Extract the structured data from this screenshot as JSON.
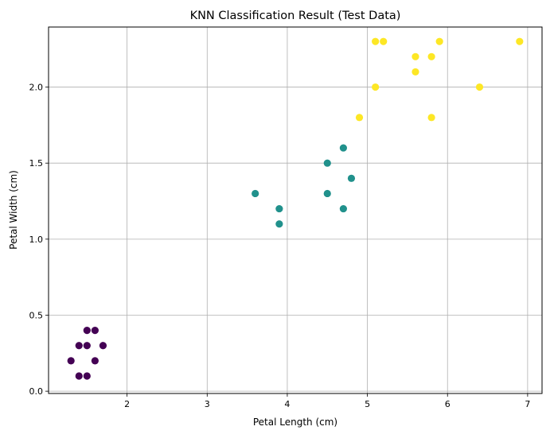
{
  "chart_data": {
    "type": "scatter",
    "title": "KNN Classification Result (Test Data)",
    "xlabel": "Petal Length (cm)",
    "ylabel": "Petal Width (cm)",
    "xlim": [
      1.02,
      7.18
    ],
    "ylim": [
      -0.015,
      2.395
    ],
    "x_ticks": [
      2,
      3,
      4,
      5,
      6,
      7
    ],
    "x_tick_labels": [
      "2",
      "3",
      "4",
      "5",
      "6",
      "7"
    ],
    "y_ticks": [
      0.0,
      0.5,
      1.0,
      1.5,
      2.0
    ],
    "y_tick_labels": [
      "0.0",
      "0.5",
      "1.0",
      "1.5",
      "2.0"
    ],
    "grid": true,
    "class_colors": {
      "0": "#440154",
      "1": "#21918c",
      "2": "#fde725"
    },
    "points": [
      {
        "x": 1.5,
        "y": 0.4,
        "class": 0
      },
      {
        "x": 1.6,
        "y": 0.4,
        "class": 0
      },
      {
        "x": 1.4,
        "y": 0.3,
        "class": 0
      },
      {
        "x": 1.5,
        "y": 0.3,
        "class": 0
      },
      {
        "x": 1.7,
        "y": 0.3,
        "class": 0
      },
      {
        "x": 1.3,
        "y": 0.2,
        "class": 0
      },
      {
        "x": 1.6,
        "y": 0.2,
        "class": 0
      },
      {
        "x": 1.4,
        "y": 0.1,
        "class": 0
      },
      {
        "x": 1.5,
        "y": 0.1,
        "class": 0
      },
      {
        "x": 3.6,
        "y": 1.3,
        "class": 1
      },
      {
        "x": 3.9,
        "y": 1.2,
        "class": 1
      },
      {
        "x": 3.9,
        "y": 1.1,
        "class": 1
      },
      {
        "x": 4.5,
        "y": 1.5,
        "class": 1
      },
      {
        "x": 4.5,
        "y": 1.3,
        "class": 1
      },
      {
        "x": 4.7,
        "y": 1.6,
        "class": 1
      },
      {
        "x": 4.7,
        "y": 1.2,
        "class": 1
      },
      {
        "x": 4.8,
        "y": 1.4,
        "class": 1
      },
      {
        "x": 4.9,
        "y": 1.8,
        "class": 2
      },
      {
        "x": 5.1,
        "y": 2.3,
        "class": 2
      },
      {
        "x": 5.2,
        "y": 2.3,
        "class": 2
      },
      {
        "x": 5.1,
        "y": 2.0,
        "class": 2
      },
      {
        "x": 5.6,
        "y": 2.2,
        "class": 2
      },
      {
        "x": 5.6,
        "y": 2.1,
        "class": 2
      },
      {
        "x": 5.8,
        "y": 2.2,
        "class": 2
      },
      {
        "x": 5.8,
        "y": 1.8,
        "class": 2
      },
      {
        "x": 5.9,
        "y": 2.3,
        "class": 2
      },
      {
        "x": 6.4,
        "y": 2.0,
        "class": 2
      },
      {
        "x": 6.9,
        "y": 2.3,
        "class": 2
      }
    ]
  }
}
